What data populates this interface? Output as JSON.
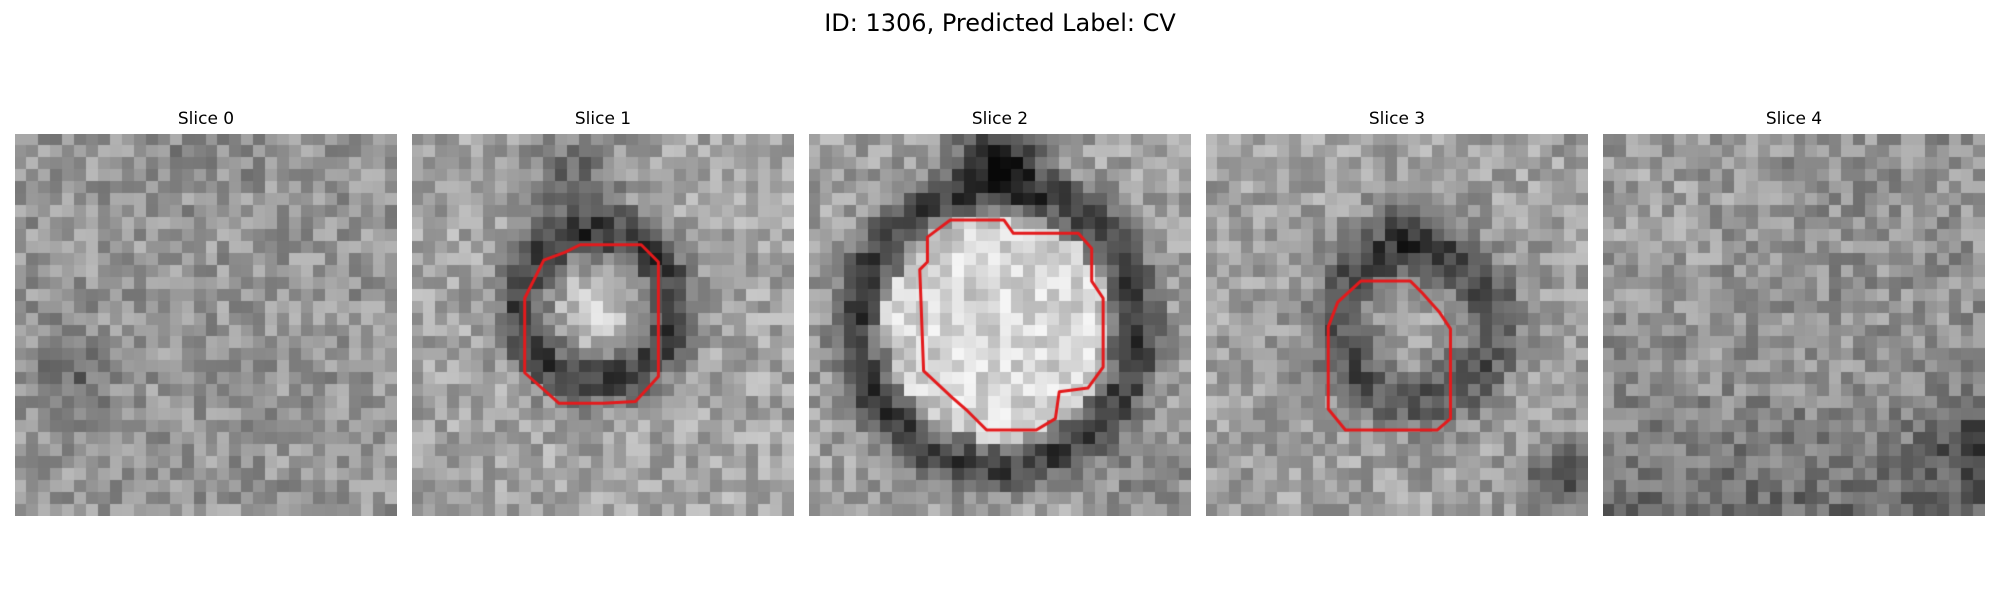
{
  "figure": {
    "title": "ID: 1306, Predicted Label: CV"
  },
  "slices": [
    {
      "title": "Slice 0",
      "contour": false
    },
    {
      "title": "Slice 1",
      "contour": true
    },
    {
      "title": "Slice 2",
      "contour": true
    },
    {
      "title": "Slice 3",
      "contour": true
    },
    {
      "title": "Slice 4",
      "contour": false
    }
  ],
  "colors": {
    "contour": "#e41a1c",
    "background": "#ffffff"
  }
}
